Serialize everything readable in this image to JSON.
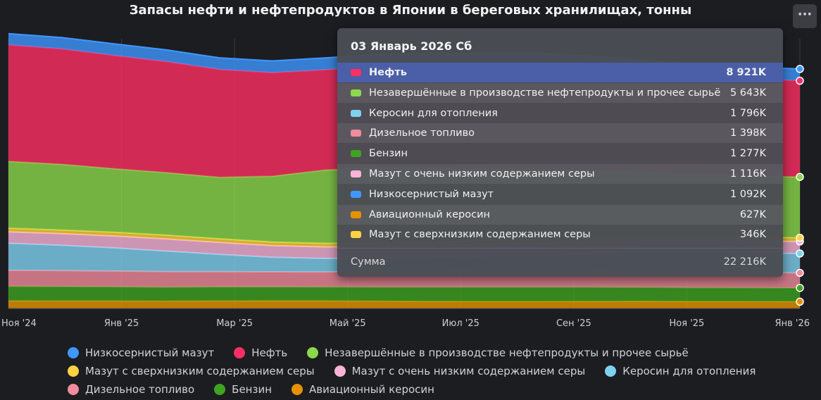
{
  "title": "Запасы нефти и нефтепродуктов в Японии в береговых хранилищах, тонны",
  "menu_icon": "ellipsis-icon",
  "menu_label": "···",
  "tooltip": {
    "date": "03 Январь 2026 Сб",
    "rows": [
      {
        "name": "Нефть",
        "value": "8 921K",
        "color": "#ff2e63",
        "active": true
      },
      {
        "name": "Незавершённые в производстве нефтепродукты и прочее сырьё",
        "value": "5 643K",
        "color": "#8bd94b"
      },
      {
        "name": "Керосин для отопления",
        "value": "1 796K",
        "color": "#7fd1f0"
      },
      {
        "name": "Дизельное топливо",
        "value": "1 398K",
        "color": "#f28b9b"
      },
      {
        "name": "Бензин",
        "value": "1 277K",
        "color": "#3fa321"
      },
      {
        "name": "Мазут с очень низким содержанием серы",
        "value": "1 116K",
        "color": "#f7b4d8"
      },
      {
        "name": "Низкосернистый мазут",
        "value": "1 092K",
        "color": "#3f97ff"
      },
      {
        "name": "Авиационный керосин",
        "value": "627K",
        "color": "#e69200"
      },
      {
        "name": "Мазут с сверхнизким содержанием серы",
        "value": "346K",
        "color": "#ffd23f"
      }
    ],
    "sum_label": "Сумма",
    "sum_value": "22 216K"
  },
  "legend": [
    [
      {
        "name": "Низкосернистый мазут",
        "color": "#3f97ff"
      },
      {
        "name": "Нефть",
        "color": "#ff2e63"
      },
      {
        "name": "Незавершённые в производстве нефтепродукты и прочее сырьё",
        "color": "#8bd94b"
      }
    ],
    [
      {
        "name": "Мазут с сверхнизким содержанием серы",
        "color": "#ffd23f"
      },
      {
        "name": "Мазут с очень низким содержанием серы",
        "color": "#f7b4d8"
      },
      {
        "name": "Керосин для отопления",
        "color": "#7fd1f0"
      }
    ],
    [
      {
        "name": "Дизельное топливо",
        "color": "#f28b9b"
      },
      {
        "name": "Бензин",
        "color": "#3fa321"
      },
      {
        "name": "Авиационный керосин",
        "color": "#e69200"
      }
    ]
  ],
  "chart_data": {
    "type": "area",
    "stacked": true,
    "title": "Запасы нефти и нефтепродуктов в Японии в береговых хранилищах, тонны",
    "x_tick_labels": [
      "Ноя '24",
      "Янв '25",
      "Мар '25",
      "Май '25",
      "Июл '25",
      "Сен '25",
      "Ноя '25",
      "Янв '26"
    ],
    "x_start": "2024-11-01",
    "x_end": "2026-01-03",
    "ylim": [
      0,
      26000
    ],
    "y_unit": "thousand tonnes",
    "grid": true,
    "legend_position": "bottom",
    "series": [
      {
        "name": "Авиационный керосин",
        "color": "#e69200",
        "values": [
          700,
          690,
          690,
          680,
          690,
          700,
          700,
          680,
          650,
          640,
          640,
          650,
          660,
          640,
          640,
          627
        ]
      },
      {
        "name": "Бензин",
        "color": "#3fa321",
        "values": [
          1350,
          1340,
          1320,
          1300,
          1310,
          1300,
          1290,
          1300,
          1320,
          1330,
          1340,
          1320,
          1300,
          1290,
          1280,
          1277
        ]
      },
      {
        "name": "Дизельное топливо",
        "color": "#f28b9b",
        "values": [
          1500,
          1480,
          1460,
          1440,
          1420,
          1400,
          1400,
          1420,
          1450,
          1470,
          1480,
          1470,
          1440,
          1420,
          1410,
          1398
        ]
      },
      {
        "name": "Керосин для отопления",
        "color": "#7fd1f0",
        "values": [
          2500,
          2350,
          2150,
          1900,
          1600,
          1350,
          1250,
          1250,
          1300,
          1400,
          1500,
          1650,
          1800,
          1850,
          1820,
          1796
        ]
      },
      {
        "name": "Мазут с очень низким содержанием серы",
        "color": "#f7b4d8",
        "values": [
          1050,
          1080,
          1100,
          1120,
          1100,
          1080,
          1070,
          1090,
          1100,
          1110,
          1100,
          1090,
          1100,
          1110,
          1115,
          1116
        ]
      },
      {
        "name": "Мазут с сверхнизким содержанием серы",
        "color": "#ffd23f",
        "values": [
          350,
          340,
          350,
          360,
          350,
          340,
          330,
          340,
          350,
          360,
          350,
          340,
          345,
          350,
          348,
          346
        ]
      },
      {
        "name": "Незавершённые в производстве нефтепродукты и прочее сырьё",
        "color": "#8bd94b",
        "values": [
          6200,
          6100,
          5900,
          5800,
          5700,
          6100,
          6800,
          7000,
          6900,
          6700,
          6500,
          6300,
          6000,
          5800,
          5700,
          5643
        ]
      },
      {
        "name": "Нефть",
        "color": "#ff2e63",
        "values": [
          10800,
          10700,
          10500,
          10300,
          10000,
          9600,
          9300,
          9400,
          9500,
          9600,
          9700,
          9500,
          9300,
          9100,
          9000,
          8921
        ]
      },
      {
        "name": "Низкосернистый мазут",
        "color": "#3f97ff",
        "values": [
          1050,
          1060,
          1070,
          1080,
          1080,
          1090,
          1100,
          1090,
          1080,
          1090,
          1100,
          1090,
          1080,
          1090,
          1092,
          1092
        ]
      }
    ]
  }
}
